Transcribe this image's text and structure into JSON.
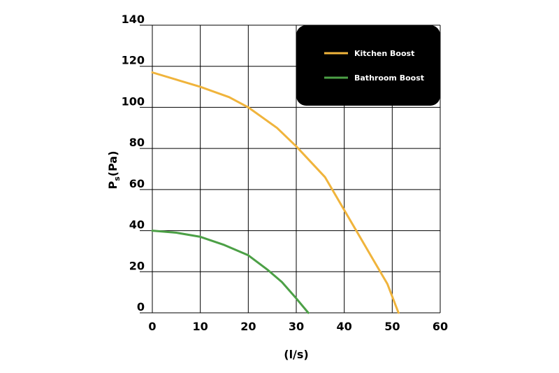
{
  "chart_data": {
    "type": "line",
    "xlabel": "(l/s)",
    "ylabel_main": "P",
    "ylabel_sub": "s",
    "ylabel_unit": "(Pa)",
    "xlim": [
      0,
      60
    ],
    "ylim": [
      0,
      140
    ],
    "x_ticks": [
      "0",
      "10",
      "20",
      "30",
      "40",
      "50",
      "60"
    ],
    "y_ticks": [
      "0",
      "20",
      "40",
      "60",
      "80",
      "100",
      "120",
      "140"
    ],
    "grid": true,
    "legend_position": "top-right",
    "legend_background": "#000000",
    "series": [
      {
        "name": "Kitchen Boost",
        "color": "#f0b43c",
        "points": [
          [
            0,
            117
          ],
          [
            10,
            110
          ],
          [
            16,
            105
          ],
          [
            20,
            100
          ],
          [
            26,
            90
          ],
          [
            30,
            81
          ],
          [
            36,
            66
          ],
          [
            40,
            50
          ],
          [
            46,
            26
          ],
          [
            49,
            14
          ],
          [
            51.3,
            0
          ]
        ]
      },
      {
        "name": "Bathroom Boost",
        "color": "#4ca046",
        "points": [
          [
            0,
            40
          ],
          [
            5,
            39
          ],
          [
            10,
            37
          ],
          [
            15,
            33
          ],
          [
            20,
            28
          ],
          [
            24,
            21
          ],
          [
            27,
            15
          ],
          [
            30,
            7
          ],
          [
            32.5,
            0
          ]
        ]
      }
    ]
  }
}
